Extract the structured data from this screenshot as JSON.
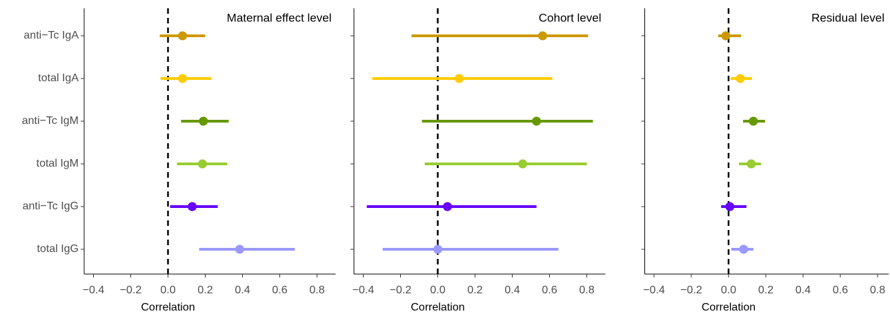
{
  "chart_data": [
    {
      "type": "pointrange",
      "title": "Maternal effect level",
      "x_label": "Correlation",
      "categories": [
        "anti−Tc IgA",
        "total IgA",
        "anti−Tc IgM",
        "total IgM",
        "anti−Tc IgG",
        "total IgG"
      ],
      "colors": [
        "#cc9900",
        "#ffcc00",
        "#669900",
        "#99cc33",
        "#6600ff",
        "#9999ff"
      ],
      "values": [
        0.078,
        0.078,
        0.19,
        0.185,
        0.13,
        0.385
      ],
      "lower": [
        -0.044,
        -0.04,
        0.07,
        0.048,
        0.011,
        0.167
      ],
      "upper": [
        0.2,
        0.233,
        0.326,
        0.318,
        0.267,
        0.681
      ],
      "xlim": [
        -0.45,
        0.9
      ],
      "xticks": [
        {
          "value": -0.4,
          "label": "−0.4"
        },
        {
          "value": -0.2,
          "label": "−0.2"
        },
        {
          "value": 0,
          "label": "0.0"
        },
        0.2,
        0.4,
        0.6,
        0.8
      ],
      "refline": 0
    },
    {
      "type": "pointrange",
      "title": "Cohort level",
      "x_label": "Correlation",
      "colors": [
        "#cc9900",
        "#ffcc00",
        "#669900",
        "#99cc33",
        "#6600ff",
        "#9999ff"
      ],
      "values": [
        0.563,
        0.115,
        0.53,
        0.456,
        0.052,
        0.0
      ],
      "lower": [
        -0.141,
        -0.352,
        -0.085,
        -0.07,
        -0.381,
        -0.296
      ],
      "upper": [
        0.807,
        0.615,
        0.833,
        0.8,
        0.53,
        0.648
      ],
      "xlim": [
        -0.45,
        0.9
      ],
      "xticks": [
        {
          "value": -0.4,
          "label": "−0.4"
        },
        {
          "value": -0.2,
          "label": "−0.2"
        },
        {
          "value": 0,
          "label": "0.0"
        },
        0.2,
        0.4,
        0.6,
        0.8
      ],
      "refline": 0
    },
    {
      "type": "pointrange",
      "title": "Residual level",
      "x_label": "Correlation",
      "colors": [
        "#cc9900",
        "#ffcc00",
        "#669900",
        "#99cc33",
        "#6600ff",
        "#9999ff"
      ],
      "values": [
        -0.015,
        0.063,
        0.133,
        0.122,
        0.007,
        0.081
      ],
      "lower": [
        -0.056,
        0.011,
        0.078,
        0.056,
        -0.04,
        0.015
      ],
      "upper": [
        0.067,
        0.126,
        0.196,
        0.174,
        0.096,
        0.133
      ],
      "xlim": [
        -0.45,
        0.86
      ],
      "xticks": [
        {
          "value": -0.4,
          "label": "−0.4"
        },
        {
          "value": -0.2,
          "label": "−0.2"
        },
        {
          "value": 0,
          "label": "0.0"
        },
        0.2,
        0.4,
        0.6,
        0.8
      ],
      "refline": 0
    }
  ]
}
